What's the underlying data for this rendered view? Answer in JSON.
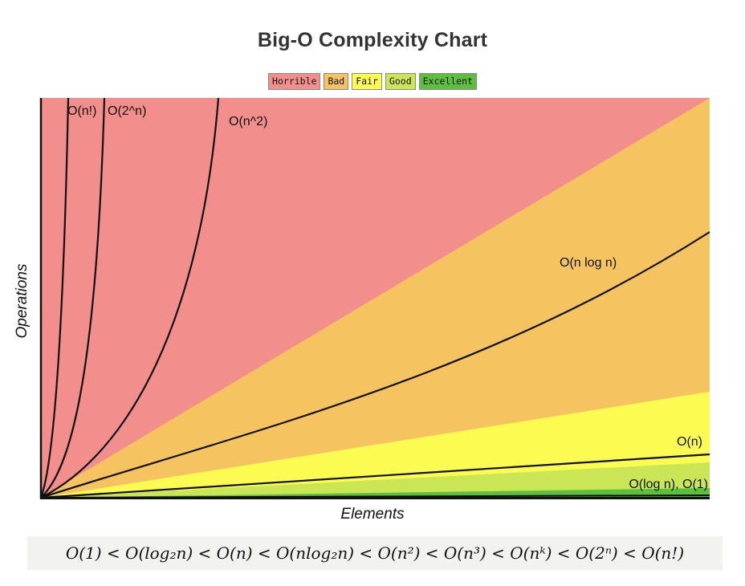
{
  "chart_data": {
    "type": "area",
    "title": "Big-O Complexity Chart",
    "xlabel": "Elements",
    "ylabel": "Operations",
    "legend": {
      "placement": "top-center",
      "items": [
        {
          "label": "Horrible",
          "color": "#f28e8b"
        },
        {
          "label": "Bad",
          "color": "#f5c35f"
        },
        {
          "label": "Fair",
          "color": "#fbfb52"
        },
        {
          "label": "Good",
          "color": "#cbe655"
        },
        {
          "label": "Excellent",
          "color": "#5cc03c"
        }
      ]
    },
    "regions": [
      {
        "label": "Horrible",
        "color": "#f28e8b"
      },
      {
        "label": "Bad",
        "color": "#f5c35f"
      },
      {
        "label": "Fair",
        "color": "#fbfb52"
      },
      {
        "label": "Good",
        "color": "#cbe655"
      },
      {
        "label": "Excellent",
        "color": "#5cc03c"
      }
    ],
    "series": [
      {
        "name": "O(n!)"
      },
      {
        "name": "O(2^n)"
      },
      {
        "name": "O(n^2)"
      },
      {
        "name": "O(n log n)"
      },
      {
        "name": "O(n)"
      },
      {
        "name": "O(log n), O(1)"
      }
    ],
    "grid": false
  },
  "formula": {
    "text": "O(1) < O(log₂n) < O(n) < O(nlog₂n) < O(n²) < O(n³) < O(nᵏ) < O(2ⁿ) < O(n!)"
  }
}
